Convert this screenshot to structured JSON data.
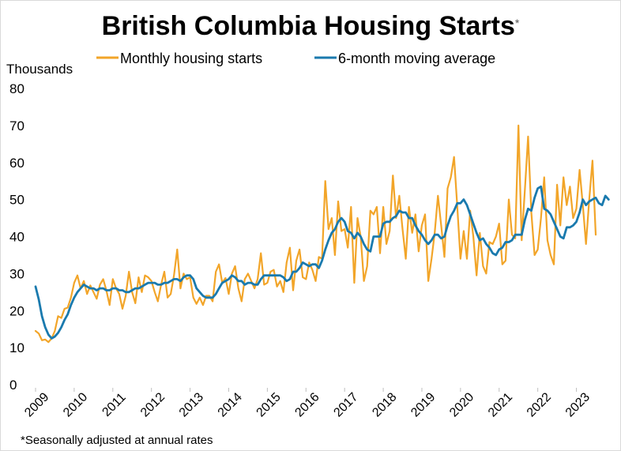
{
  "chart_data": {
    "type": "line",
    "title": "British Columbia Housing Starts",
    "title_marker": "*",
    "ylabel": "Thousands",
    "xlabel": "",
    "ylim": [
      0,
      80
    ],
    "yticks": [
      0,
      10,
      20,
      30,
      40,
      50,
      60,
      70,
      80
    ],
    "xlim": [
      2009,
      2023.5
    ],
    "xticks": [
      "2009",
      "2010",
      "2011",
      "2012",
      "2013",
      "2014",
      "2015",
      "2016",
      "2017",
      "2018",
      "2019",
      "2020",
      "2021",
      "2022",
      "2023"
    ],
    "footnote": "*Seasonally adjusted at annual rates",
    "grid": false,
    "legend_position": "top",
    "series": [
      {
        "name": "Monthly housing starts",
        "color": "#F2A529",
        "start_year": 2009,
        "step": 0.08333,
        "values": [
          14.5,
          13.8,
          12,
          12.2,
          11.5,
          12.5,
          14.5,
          18.5,
          18,
          20.5,
          20.8,
          23.5,
          27.5,
          29.5,
          26,
          28,
          24.5,
          26.8,
          25,
          23.2,
          27,
          28.5,
          25.5,
          21.5,
          28.5,
          26,
          24.5,
          20.5,
          24,
          30.5,
          25,
          22,
          29,
          25,
          29.5,
          29,
          28,
          25,
          22.5,
          27,
          30.5,
          23.5,
          24.5,
          29.5,
          36.5,
          26,
          30,
          28.5,
          29,
          23.5,
          21.8,
          23.5,
          21.5,
          24,
          24,
          22.5,
          30.5,
          32.5,
          27.5,
          28.8,
          24.5,
          30,
          32,
          26,
          22.5,
          28.5,
          30,
          28,
          26,
          28.5,
          35.5,
          27,
          27.5,
          30.5,
          31,
          26.5,
          28,
          25,
          33,
          37,
          25.5,
          33.5,
          36.5,
          29,
          28.5,
          33,
          31,
          28,
          34.5,
          34,
          55,
          42,
          45,
          35,
          49.5,
          41.5,
          42,
          37,
          48,
          27.5,
          45,
          40,
          28,
          32,
          47,
          46,
          48,
          35.5,
          48,
          38,
          41.5,
          56.5,
          45,
          51,
          42,
          34,
          48,
          41,
          46,
          36,
          43,
          46,
          28,
          34,
          41,
          51,
          43,
          34.5,
          53,
          56,
          61.5,
          48,
          34,
          41.5,
          34,
          47,
          40,
          29.5,
          41,
          32,
          30,
          38.5,
          38,
          40,
          43.5,
          32.5,
          33.5,
          50,
          40.5,
          39.5,
          70,
          39,
          52.5,
          67,
          46.5,
          35,
          36.5,
          45,
          56,
          39,
          35,
          32.5,
          54,
          43,
          56,
          48.5,
          53.5,
          45,
          47.5,
          58,
          48.5,
          38,
          50,
          60.5,
          40.5
        ]
      },
      {
        "name": "6-month moving average",
        "color": "#1A7AAE",
        "start_year": 2009,
        "step": 0.08333,
        "values": [
          26.5,
          23,
          18.5,
          15.5,
          13.5,
          12.5,
          13,
          14,
          15.5,
          17.5,
          19,
          21.5,
          23.5,
          25,
          26,
          27,
          26.5,
          26,
          26,
          25.5,
          26,
          26,
          25.5,
          25.5,
          26,
          26,
          25.5,
          25.5,
          25,
          25,
          25.5,
          26,
          26,
          26.5,
          27,
          27.5,
          27.5,
          27.5,
          27,
          27,
          27.5,
          27.5,
          28,
          28.5,
          28.5,
          28,
          29,
          29.5,
          29.5,
          28.5,
          26,
          25,
          24,
          23.5,
          23.5,
          23.5,
          24.5,
          26,
          27.5,
          28,
          28.5,
          29.5,
          29,
          28,
          28,
          27,
          27.5,
          27.5,
          27,
          27,
          28.5,
          29.5,
          29.5,
          29.5,
          29.5,
          29.5,
          29.5,
          29,
          28,
          28.5,
          30.5,
          30.5,
          31.5,
          33,
          32.5,
          32,
          32.5,
          32.5,
          31.5,
          33.5,
          36.5,
          39,
          41,
          42,
          44,
          45,
          44,
          41.5,
          41,
          39.5,
          41,
          40,
          38,
          36.5,
          36,
          40,
          40,
          40,
          43.5,
          44,
          44,
          45,
          45.5,
          47,
          46.5,
          46.5,
          45,
          45,
          43,
          41.5,
          40.5,
          39,
          38,
          39,
          40.5,
          40.5,
          39.5,
          40,
          43,
          45.5,
          47,
          49,
          49,
          50,
          48.5,
          46,
          43.5,
          41,
          39,
          39.5,
          38,
          37,
          35.5,
          35,
          36.5,
          37,
          38.5,
          38.5,
          39,
          40.5,
          40.5,
          40.5,
          44.5,
          47.5,
          47,
          50.5,
          53,
          53.5,
          47.5,
          47,
          46,
          44,
          42,
          40,
          39.5,
          42.5,
          42.5,
          43,
          44,
          46.5,
          50,
          48.5,
          49.5,
          50,
          50.5,
          49,
          48.5,
          51,
          50
        ]
      }
    ]
  }
}
